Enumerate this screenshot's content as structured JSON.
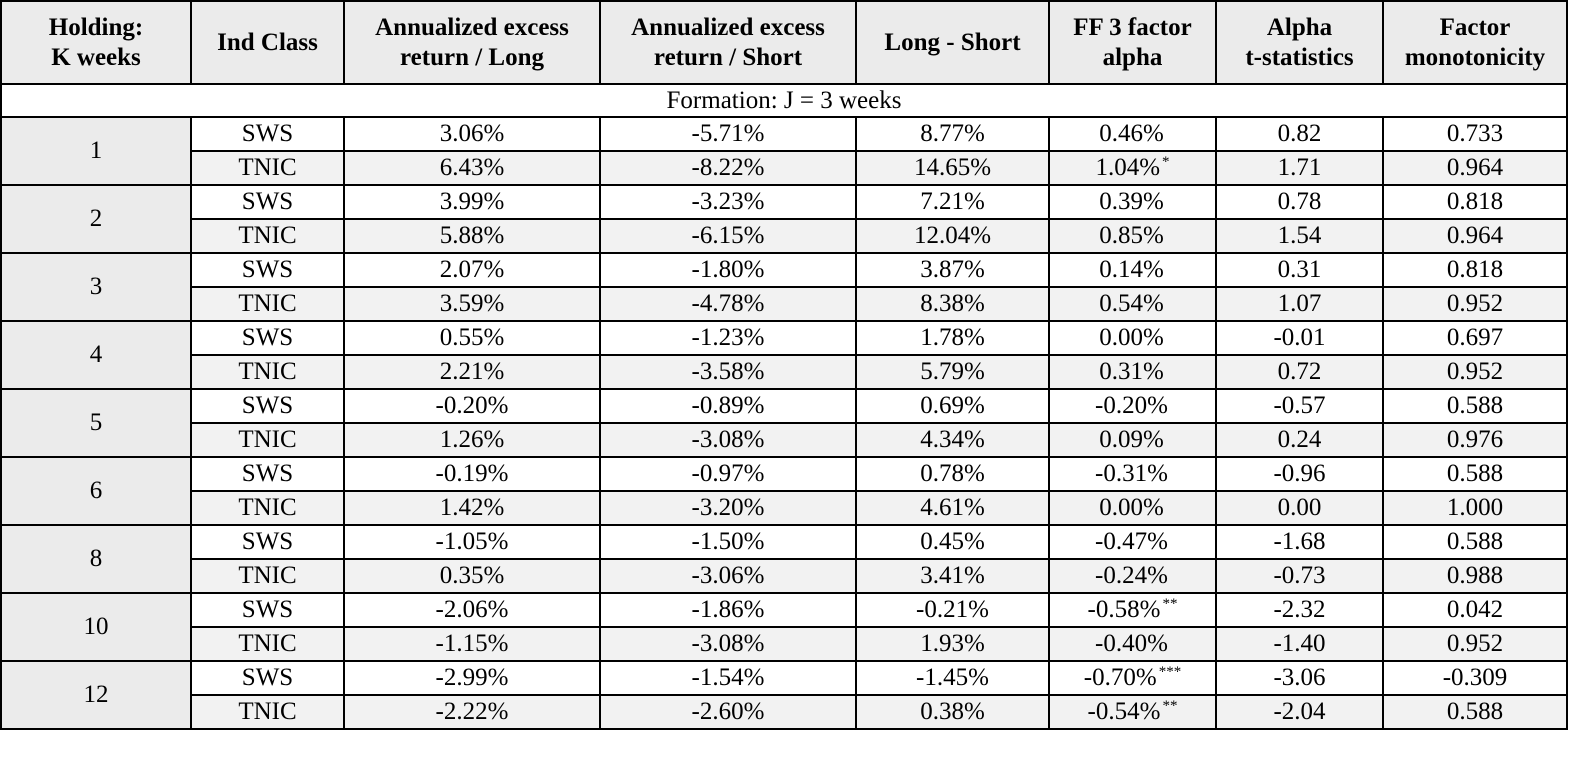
{
  "headers": {
    "holding": [
      "Holding:",
      "K weeks"
    ],
    "ind_class": [
      "Ind Class"
    ],
    "excess_long": [
      "Annualized excess",
      "return / Long"
    ],
    "excess_short": [
      "Annualized excess",
      "return / Short"
    ],
    "long_short": [
      "Long - Short"
    ],
    "ff3_alpha": [
      "FF 3 factor",
      "alpha"
    ],
    "alpha_t": [
      "Alpha",
      "t-statistics"
    ],
    "factor_mono": [
      "Factor",
      "monotonicity"
    ]
  },
  "formation_label": "Formation: J = 3 weeks",
  "groups": [
    {
      "holding": "1",
      "rows": [
        {
          "ind_class": "SWS",
          "excess_long": "3.06%",
          "excess_short": "-5.71%",
          "long_short": "8.77%",
          "alpha": "0.46%",
          "sig": "",
          "t_stat": "0.82",
          "monotonicity": "0.733"
        },
        {
          "ind_class": "TNIC",
          "excess_long": "6.43%",
          "excess_short": "-8.22%",
          "long_short": "14.65%",
          "alpha": "1.04%",
          "sig": "*",
          "t_stat": "1.71",
          "monotonicity": "0.964"
        }
      ]
    },
    {
      "holding": "2",
      "rows": [
        {
          "ind_class": "SWS",
          "excess_long": "3.99%",
          "excess_short": "-3.23%",
          "long_short": "7.21%",
          "alpha": "0.39%",
          "sig": "",
          "t_stat": "0.78",
          "monotonicity": "0.818"
        },
        {
          "ind_class": "TNIC",
          "excess_long": "5.88%",
          "excess_short": "-6.15%",
          "long_short": "12.04%",
          "alpha": "0.85%",
          "sig": "",
          "t_stat": "1.54",
          "monotonicity": "0.964"
        }
      ]
    },
    {
      "holding": "3",
      "rows": [
        {
          "ind_class": "SWS",
          "excess_long": "2.07%",
          "excess_short": "-1.80%",
          "long_short": "3.87%",
          "alpha": "0.14%",
          "sig": "",
          "t_stat": "0.31",
          "monotonicity": "0.818"
        },
        {
          "ind_class": "TNIC",
          "excess_long": "3.59%",
          "excess_short": "-4.78%",
          "long_short": "8.38%",
          "alpha": "0.54%",
          "sig": "",
          "t_stat": "1.07",
          "monotonicity": "0.952"
        }
      ]
    },
    {
      "holding": "4",
      "rows": [
        {
          "ind_class": "SWS",
          "excess_long": "0.55%",
          "excess_short": "-1.23%",
          "long_short": "1.78%",
          "alpha": "0.00%",
          "sig": "",
          "t_stat": "-0.01",
          "monotonicity": "0.697"
        },
        {
          "ind_class": "TNIC",
          "excess_long": "2.21%",
          "excess_short": "-3.58%",
          "long_short": "5.79%",
          "alpha": "0.31%",
          "sig": "",
          "t_stat": "0.72",
          "monotonicity": "0.952"
        }
      ]
    },
    {
      "holding": "5",
      "rows": [
        {
          "ind_class": "SWS",
          "excess_long": "-0.20%",
          "excess_short": "-0.89%",
          "long_short": "0.69%",
          "alpha": "-0.20%",
          "sig": "",
          "t_stat": "-0.57",
          "monotonicity": "0.588"
        },
        {
          "ind_class": "TNIC",
          "excess_long": "1.26%",
          "excess_short": "-3.08%",
          "long_short": "4.34%",
          "alpha": "0.09%",
          "sig": "",
          "t_stat": "0.24",
          "monotonicity": "0.976"
        }
      ]
    },
    {
      "holding": "6",
      "rows": [
        {
          "ind_class": "SWS",
          "excess_long": "-0.19%",
          "excess_short": "-0.97%",
          "long_short": "0.78%",
          "alpha": "-0.31%",
          "sig": "",
          "t_stat": "-0.96",
          "monotonicity": "0.588"
        },
        {
          "ind_class": "TNIC",
          "excess_long": "1.42%",
          "excess_short": "-3.20%",
          "long_short": "4.61%",
          "alpha": "0.00%",
          "sig": "",
          "t_stat": "0.00",
          "monotonicity": "1.000"
        }
      ]
    },
    {
      "holding": "8",
      "rows": [
        {
          "ind_class": "SWS",
          "excess_long": "-1.05%",
          "excess_short": "-1.50%",
          "long_short": "0.45%",
          "alpha": "-0.47%",
          "sig": "",
          "t_stat": "-1.68",
          "monotonicity": "0.588"
        },
        {
          "ind_class": "TNIC",
          "excess_long": "0.35%",
          "excess_short": "-3.06%",
          "long_short": "3.41%",
          "alpha": "-0.24%",
          "sig": "",
          "t_stat": "-0.73",
          "monotonicity": "0.988"
        }
      ]
    },
    {
      "holding": "10",
      "rows": [
        {
          "ind_class": "SWS",
          "excess_long": "-2.06%",
          "excess_short": "-1.86%",
          "long_short": "-0.21%",
          "alpha": "-0.58%",
          "sig": "**",
          "t_stat": "-2.32",
          "monotonicity": "0.042"
        },
        {
          "ind_class": "TNIC",
          "excess_long": "-1.15%",
          "excess_short": "-3.08%",
          "long_short": "1.93%",
          "alpha": "-0.40%",
          "sig": "",
          "t_stat": "-1.40",
          "monotonicity": "0.952"
        }
      ]
    },
    {
      "holding": "12",
      "rows": [
        {
          "ind_class": "SWS",
          "excess_long": "-2.99%",
          "excess_short": "-1.54%",
          "long_short": "-1.45%",
          "alpha": "-0.70%",
          "sig": "***",
          "t_stat": "-3.06",
          "monotonicity": "-0.309"
        },
        {
          "ind_class": "TNIC",
          "excess_long": "-2.22%",
          "excess_short": "-2.60%",
          "long_short": "0.38%",
          "alpha": "-0.54%",
          "sig": "**",
          "t_stat": "-2.04",
          "monotonicity": "0.588"
        }
      ]
    }
  ]
}
